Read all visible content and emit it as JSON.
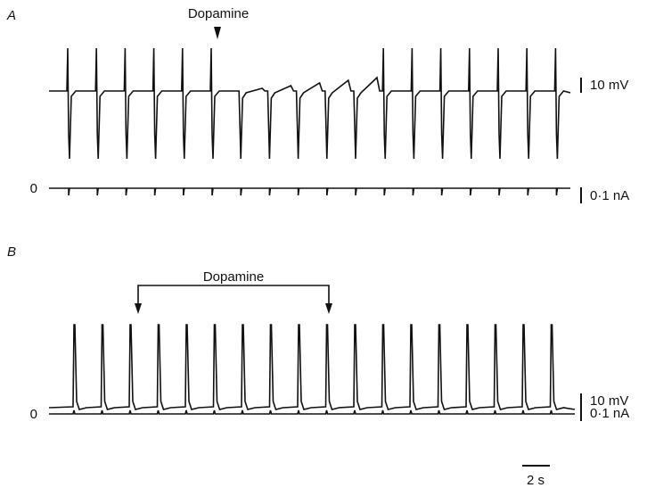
{
  "panels": [
    {
      "label": "A",
      "annotation": "Dopamine",
      "zero_label": "0",
      "voltage_scale": "10 mV",
      "current_scale": "0·1 nA"
    },
    {
      "label": "B",
      "annotation": "Dopamine",
      "zero_label": "0",
      "voltage_scale": "10 mV",
      "current_scale": "0·1 nA"
    }
  ],
  "time_scale": "2 s"
}
